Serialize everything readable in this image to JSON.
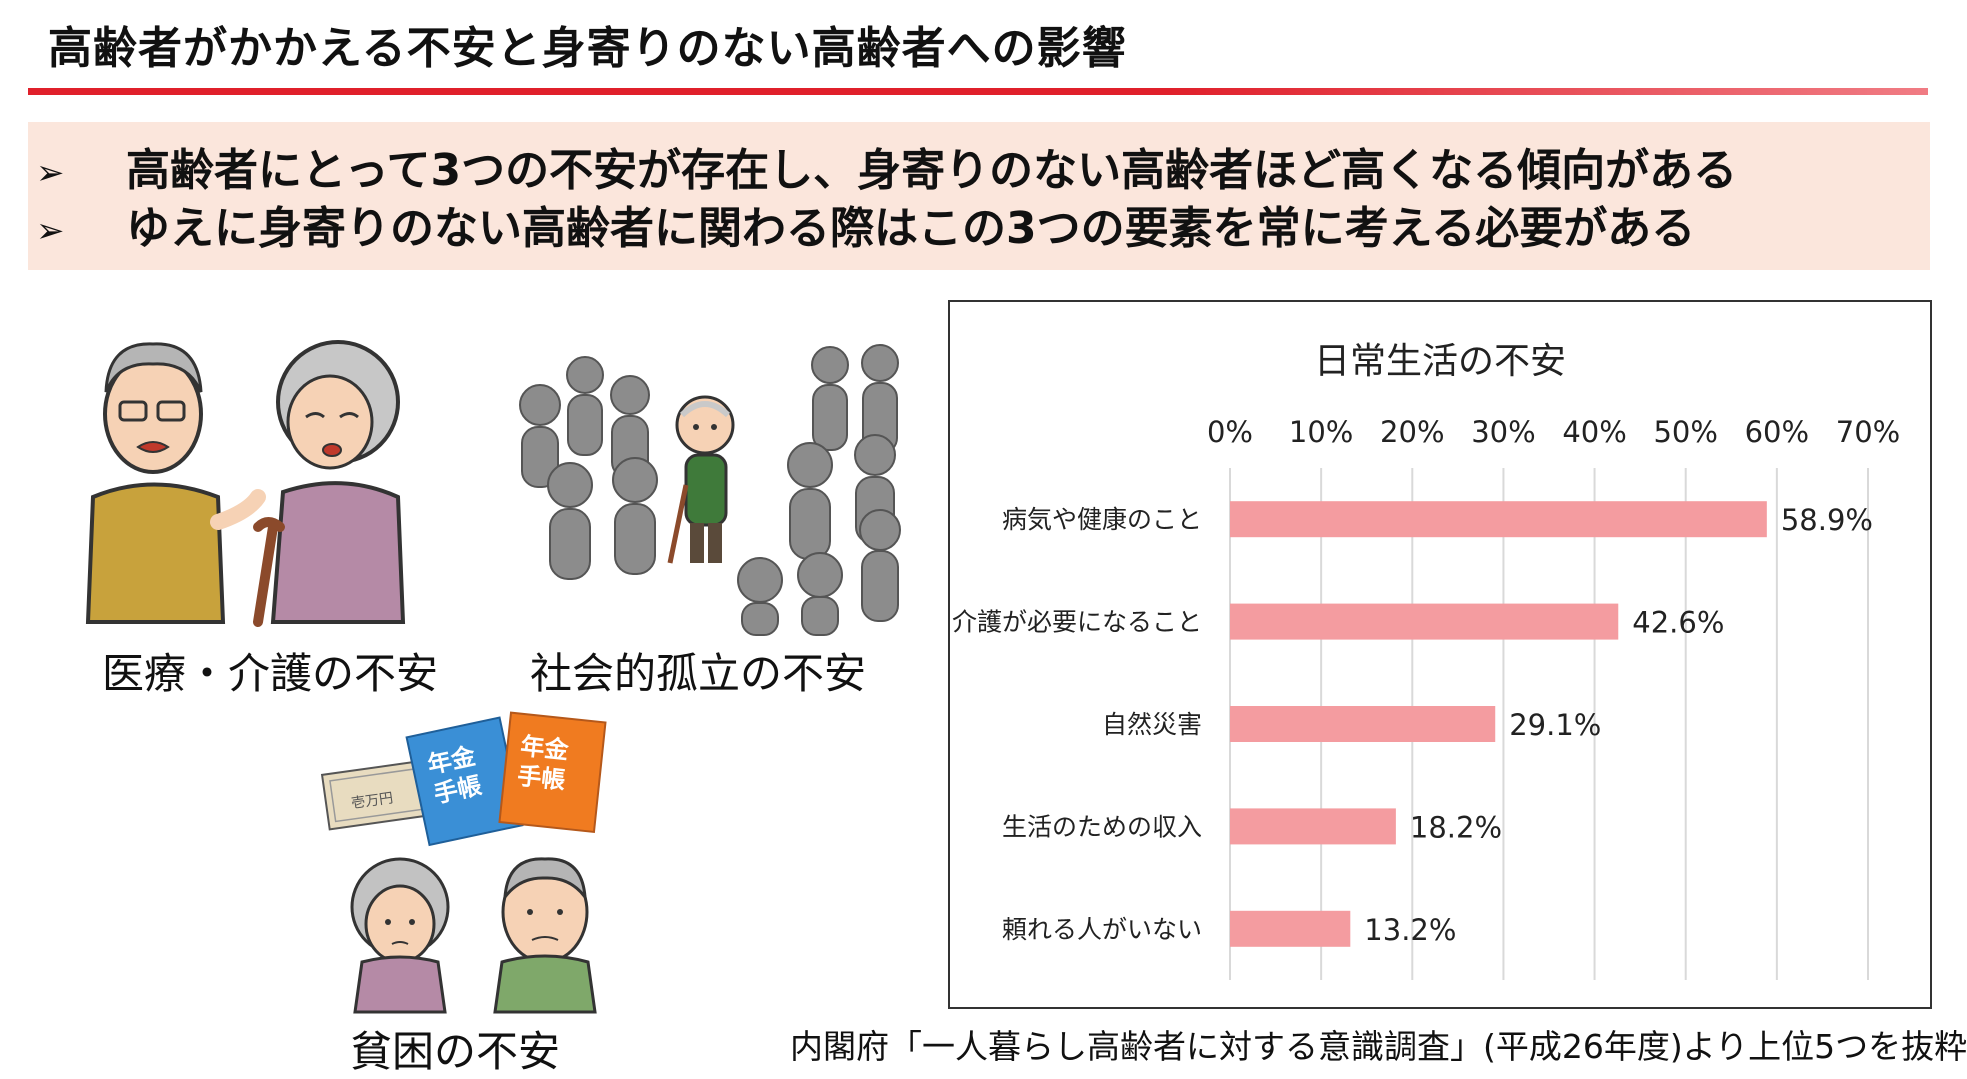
{
  "header": {
    "title": "高齢者がかかえる不安と身寄りのない高齢者への影響"
  },
  "summary": {
    "bullet_glyph": "➢",
    "lines": [
      "高齢者にとって3つの不安が存在し、身寄りのない高齢者ほど高くなる傾向がある",
      "ゆえに身寄りのない高齢者に関わる際はこの3つの要素を常に考える必要がある"
    ]
  },
  "illustrations": {
    "medical": {
      "caption": "医療・介護の不安",
      "icon": "elderly-couple-worried-icon"
    },
    "isolation": {
      "caption": "社会的孤立の不安",
      "icon": "isolated-elder-crowd-icon"
    },
    "poverty": {
      "caption": "貧困の不安",
      "icon": "elderly-couple-pension-icon",
      "book1": [
        "年金",
        "手帳"
      ],
      "book2": [
        "年金",
        "手帳"
      ],
      "note_text": "壱万円"
    }
  },
  "chart_data": {
    "type": "bar",
    "orientation": "horizontal",
    "title": "日常生活の不安",
    "categories": [
      "病気や健康のこと",
      "介護が必要になること",
      "自然災害",
      "生活のための収入",
      "頼れる人がいない"
    ],
    "values": [
      58.9,
      42.6,
      29.1,
      18.2,
      13.2
    ],
    "value_labels": [
      "58.9%",
      "42.6%",
      "29.1%",
      "18.2%",
      "13.2%"
    ],
    "xlim": [
      0,
      70
    ],
    "x_ticks": [
      0,
      10,
      20,
      30,
      40,
      50,
      60,
      70
    ],
    "x_tick_labels": [
      "0%",
      "10%",
      "20%",
      "30%",
      "40%",
      "50%",
      "60%",
      "70%"
    ],
    "axis_position": "top",
    "grid": true,
    "bar_color": "#f49ca0",
    "grid_color": "#d9d9d9"
  },
  "footer": {
    "source": "内閣府「一人暮らし高齢者に対する意識調査」(平成26年度)より上位5つを抜粋"
  }
}
